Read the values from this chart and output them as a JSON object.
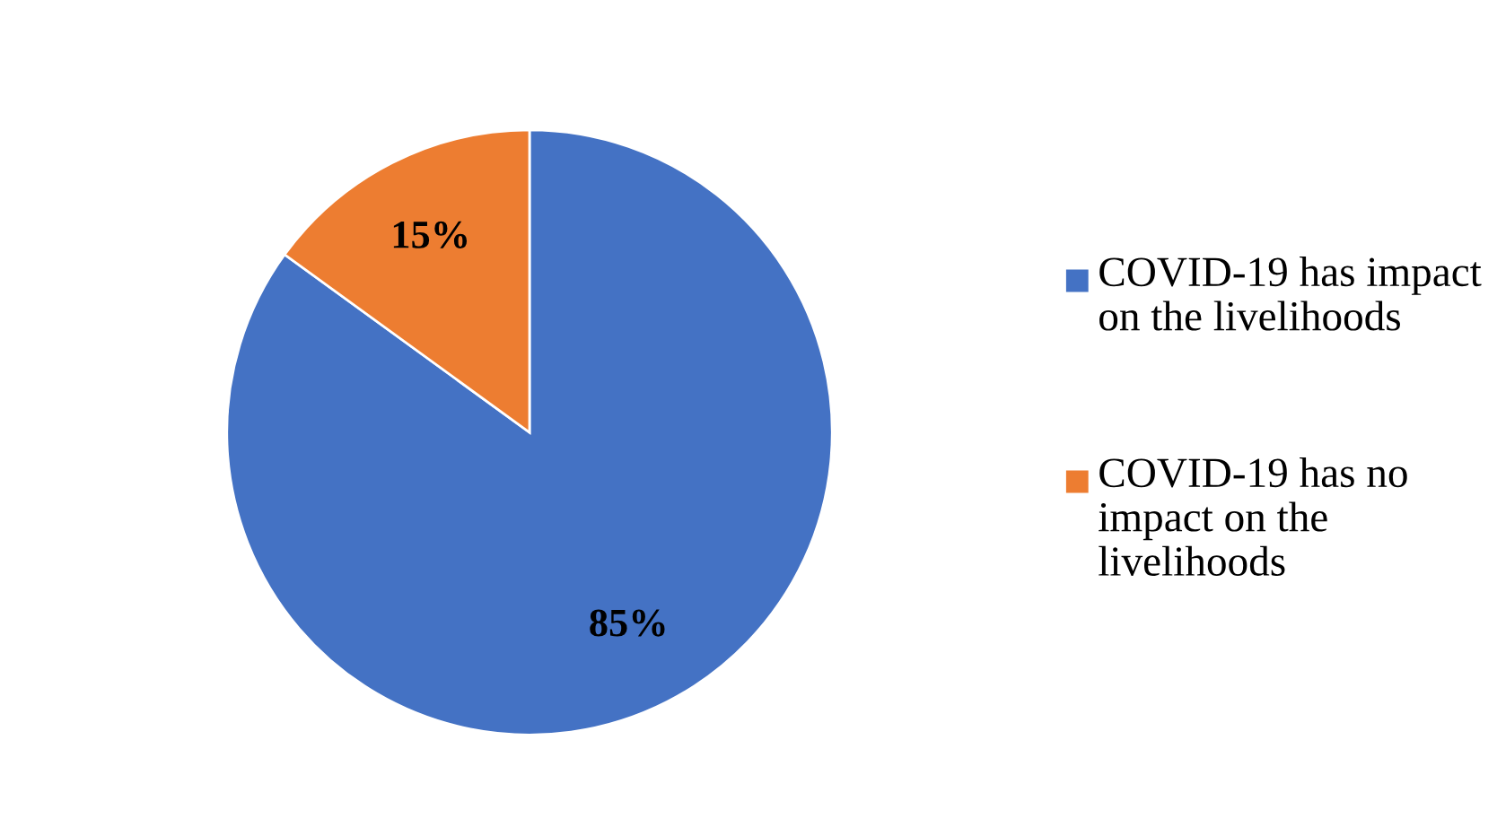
{
  "chart_data": {
    "type": "pie",
    "categories": [
      "COVID-19 has impact on the livelihoods",
      "COVID-19 has no impact on the livelihoods"
    ],
    "values": [
      85,
      15
    ],
    "colors": [
      "#4472c4",
      "#ed7d31"
    ],
    "value_labels": [
      "85%",
      "15%"
    ],
    "legend": "right"
  }
}
